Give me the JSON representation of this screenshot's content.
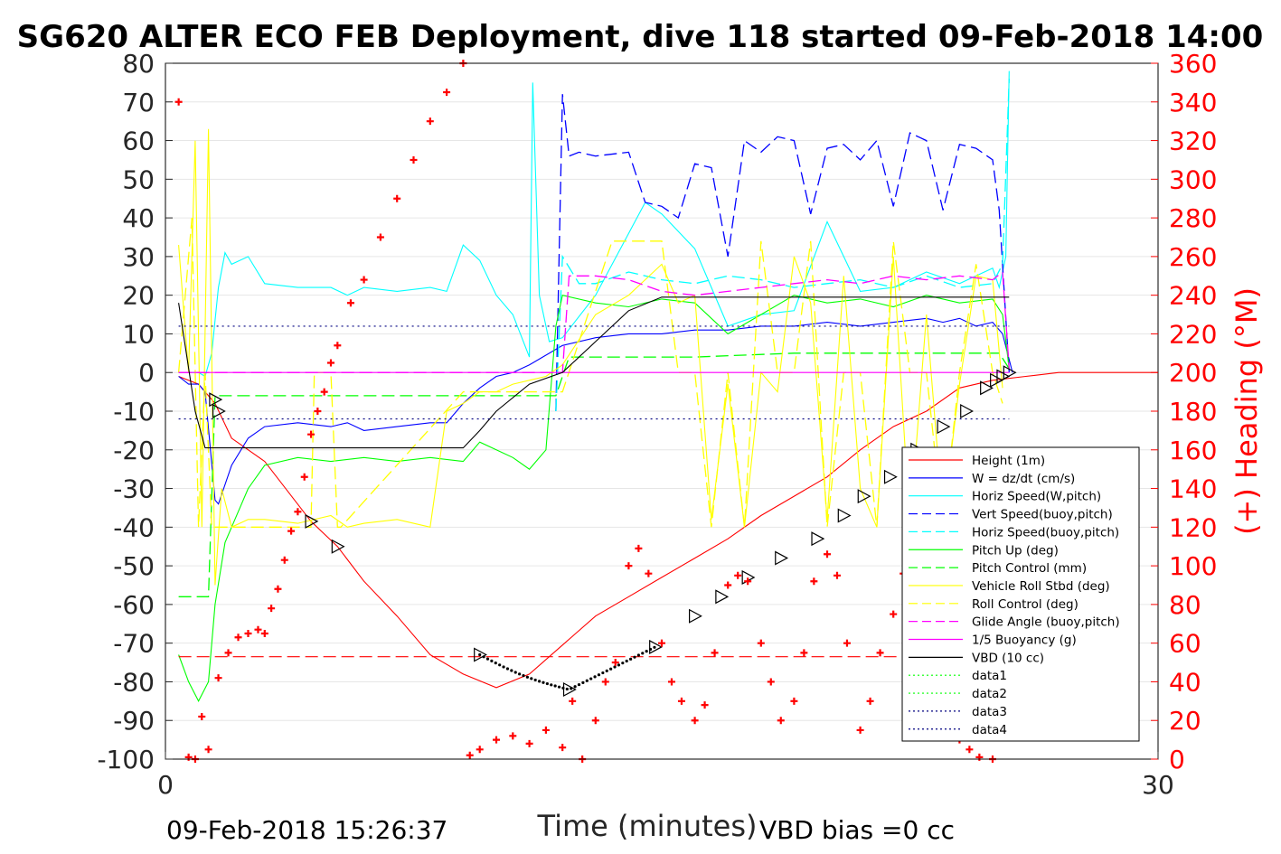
{
  "title": "SG620 ALTER ECO FEB Deployment, dive 118 started 09-Feb-2018 14:00",
  "footer": {
    "timestamp": "09-Feb-2018 15:26:37",
    "vbd_bias": "VBD bias =0 cc"
  },
  "chart_data": {
    "type": "line",
    "xlabel": "Time (minutes)",
    "ylabel_left": "",
    "ylabel_right": "(+) Heading (°M)",
    "xlim": [
      0,
      30
    ],
    "ylim_left": [
      -100,
      80
    ],
    "ylim_right": [
      0,
      360
    ],
    "xticks": [
      "0",
      "30"
    ],
    "yticks_left": [
      "80",
      "70",
      "60",
      "50",
      "40",
      "30",
      "20",
      "10",
      "0",
      "-10",
      "-20",
      "-30",
      "-40",
      "-50",
      "-60",
      "-70",
      "-80",
      "-90",
      "-100"
    ],
    "yticks_right": [
      "360",
      "340",
      "320",
      "300",
      "280",
      "260",
      "240",
      "220",
      "200",
      "180",
      "160",
      "140",
      "120",
      "100",
      "80",
      "60",
      "40",
      "20",
      "0"
    ],
    "grid": true,
    "legend_position": "lower-right",
    "colors": {
      "red": "#ff0000",
      "blue": "#0000ff",
      "cyan": "#00ffff",
      "green": "#00ff00",
      "yellow": "#ffff00",
      "magenta": "#ff00ff",
      "black": "#000000",
      "navy": "#000080"
    },
    "series": [
      {
        "name": "Height (1m)",
        "color": "#ff0000",
        "style": "solid",
        "x": [
          0.4,
          1,
          1.5,
          2,
          3,
          4.4,
          5.2,
          6,
          7,
          8,
          9,
          10,
          11,
          12,
          13,
          14,
          15,
          16,
          17,
          18,
          19,
          20,
          21,
          22,
          23,
          24,
          25,
          26,
          27,
          28,
          29,
          30
        ],
        "y": [
          -1,
          -3,
          -8,
          -17,
          -23,
          -38.5,
          -45,
          -54,
          -63,
          -73,
          -78,
          -81.5,
          -78,
          -70.5,
          -63,
          -58,
          -53,
          -48,
          -43,
          -37,
          -32,
          -27,
          -20,
          -14,
          -10,
          -4,
          -2,
          -1,
          0,
          0,
          0,
          0
        ]
      },
      {
        "name": "W = dz/dt (cm/s)",
        "color": "#0000ff",
        "style": "solid",
        "x": [
          0.4,
          0.7,
          1,
          1.2,
          1.5,
          1.6,
          2,
          2.5,
          3,
          4,
          5,
          5.5,
          6,
          7,
          8,
          8.5,
          9,
          9.5,
          10,
          10.5,
          11,
          12,
          13,
          14,
          15,
          16,
          17,
          18,
          19,
          20,
          21,
          22,
          23,
          23.5,
          24,
          24.5,
          25,
          25.3,
          25.6
        ],
        "y": [
          -1,
          -3,
          -3,
          -5,
          -33,
          -34,
          -24,
          -17,
          -14,
          -13,
          -14,
          -13,
          -15,
          -14,
          -13,
          -13,
          -8,
          -4,
          -1,
          0,
          2,
          7,
          9,
          10,
          10,
          11,
          11,
          12,
          12,
          13,
          12,
          13,
          14,
          13,
          14,
          12,
          13,
          10,
          0
        ]
      },
      {
        "name": "Horiz Speed(W,pitch)",
        "color": "#00ffff",
        "style": "solid",
        "x": [
          0.4,
          1,
          1.2,
          1.4,
          1.6,
          1.8,
          2,
          2.5,
          3,
          4,
          5,
          5.5,
          6,
          7,
          8,
          8.5,
          9,
          9.5,
          10,
          10.5,
          11,
          11.1,
          11.3,
          11.6,
          12,
          13,
          14,
          14.5,
          15,
          16,
          17,
          18,
          19,
          20,
          21,
          22,
          23,
          24,
          24.5,
          25,
          25.2,
          25.4,
          25.5
        ],
        "y": [
          0,
          0,
          -1,
          5,
          22,
          31,
          28,
          30,
          23,
          22,
          22,
          20,
          22,
          21,
          22,
          21,
          33,
          29,
          20,
          15,
          4,
          75,
          20,
          8,
          9,
          20,
          36,
          44,
          41,
          32,
          12,
          15,
          16,
          39,
          21,
          22,
          26,
          23,
          25,
          27,
          22,
          30,
          78
        ]
      },
      {
        "name": "Vert Speed(buoy,pitch)",
        "color": "#0000ff",
        "style": "dash",
        "x": [
          11.8,
          12,
          12.2,
          12.5,
          13,
          14,
          14.5,
          15,
          15.5,
          16,
          16.5,
          17,
          17.5,
          18,
          18.5,
          19,
          19.5,
          20,
          20.5,
          21,
          21.5,
          22,
          22.5,
          23,
          23.5,
          24,
          24.5,
          25,
          25.2,
          25.5
        ],
        "y": [
          -10,
          72,
          56,
          57,
          56,
          57,
          44,
          43,
          40,
          54,
          53,
          30,
          60,
          57,
          61,
          60,
          41,
          58,
          59,
          55,
          60,
          43,
          62,
          60,
          42,
          59,
          58,
          55,
          42,
          0
        ]
      },
      {
        "name": "Horiz Speed(buoy,pitch)",
        "color": "#00ffff",
        "style": "dash",
        "x": [
          11.8,
          12,
          12.5,
          13,
          14,
          15,
          16,
          17,
          18,
          19,
          20,
          21,
          22,
          23,
          24,
          25,
          25.3,
          25.5
        ],
        "y": [
          -10,
          30,
          23,
          23,
          26,
          24,
          23,
          25,
          24,
          22,
          23,
          24,
          22,
          25,
          22,
          23,
          28,
          76
        ]
      },
      {
        "name": "Pitch Up (deg)",
        "color": "#00ff00",
        "style": "solid",
        "x": [
          0.4,
          0.7,
          1,
          1.3,
          1.5,
          1.8,
          2,
          2.5,
          3,
          4,
          5,
          6,
          7,
          8,
          9,
          9.5,
          10,
          10.5,
          11,
          11.5,
          11.8,
          12,
          13,
          14,
          15,
          16,
          17,
          18,
          19,
          20,
          21,
          22,
          23,
          24,
          25,
          25.3,
          25.5
        ],
        "y": [
          -73,
          -80,
          -85,
          -80,
          -60,
          -44,
          -40,
          -30,
          -24,
          -22,
          -23,
          -22,
          -23,
          -22,
          -23,
          -18,
          -20,
          -22,
          -25,
          -20,
          12,
          20,
          18,
          17,
          19,
          18,
          10,
          15,
          20,
          18,
          19,
          17,
          20,
          18,
          19,
          15,
          1
        ]
      },
      {
        "name": "Pitch Control (mm)",
        "color": "#00ff00",
        "style": "dash",
        "x": [
          0.4,
          1.3,
          1.5,
          9,
          11.8,
          12.2,
          16,
          19,
          22,
          25.2,
          25.5
        ],
        "y": [
          -58,
          -58,
          -6,
          -6,
          -6,
          4,
          4,
          5,
          5,
          5,
          1
        ]
      },
      {
        "name": "Vehicle Roll Stbd (deg)",
        "color": "#ffff00",
        "style": "solid",
        "x": [
          0.4,
          0.7,
          0.9,
          1.1,
          1.3,
          1.5,
          1.7,
          2,
          2.5,
          3,
          4,
          5,
          5.5,
          6,
          7,
          8,
          8.5,
          9,
          9.5,
          10,
          10.5,
          11,
          11.5,
          12,
          13,
          14,
          15,
          15.5,
          16,
          16.5,
          17,
          17.5,
          18,
          18.5,
          19,
          19.5,
          20,
          20.5,
          21,
          21.5,
          22,
          22.5,
          23,
          23.5,
          24,
          24.5,
          25,
          25.3
        ],
        "y": [
          33,
          0,
          60,
          -40,
          63,
          -55,
          -30,
          -40,
          -38,
          -38,
          -39,
          -37,
          -40,
          -39,
          -38,
          -40,
          -10,
          -8,
          -5,
          -5,
          -3,
          -2,
          -1,
          2,
          15,
          20,
          28,
          18,
          20,
          -38,
          -3,
          -40,
          0,
          -5,
          30,
          18,
          -38,
          25,
          -30,
          -40,
          30,
          -40,
          15,
          -38,
          -3,
          25,
          24,
          -4
        ]
      },
      {
        "name": "Roll Control (deg)",
        "color": "#ffff00",
        "style": "dash",
        "x": [
          0.4,
          0.8,
          1,
          1.2,
          1.4,
          2,
          4.4,
          4.5,
          5,
          5.2,
          5.3,
          9,
          12,
          13.5,
          15,
          15.5,
          16,
          16.5,
          17,
          17.5,
          18,
          18.5,
          19,
          19.5,
          20,
          20.5,
          21,
          21.5,
          22,
          22.5,
          23,
          23.5,
          24,
          24.5,
          25,
          25.3
        ],
        "y": [
          0,
          40,
          -40,
          0,
          -40,
          -40,
          -40,
          0,
          0,
          -40,
          -40,
          -5,
          -5,
          34,
          34,
          0,
          0,
          -40,
          0,
          -40,
          34,
          0,
          0,
          34,
          -40,
          0,
          0,
          -40,
          34,
          0,
          0,
          -40,
          0,
          28,
          0,
          -8
        ]
      },
      {
        "name": "Glide Angle (buoy,pitch)",
        "color": "#ff00ff",
        "style": "dash",
        "x": [
          0.4,
          12,
          12.2,
          13,
          14,
          15,
          16,
          17,
          18,
          19,
          20,
          21,
          22,
          23,
          24,
          25,
          25.3,
          25.5
        ],
        "y": [
          0,
          0,
          25,
          25,
          24,
          21,
          20,
          21,
          22,
          23,
          24,
          23,
          25,
          24,
          25,
          24,
          26,
          1
        ]
      },
      {
        "name": "1/5 Buoyancy (g)",
        "color": "#ff00ff",
        "style": "solid",
        "x": [
          0.4,
          25.5
        ],
        "y": [
          0,
          0
        ]
      },
      {
        "name": "VBD (10 cc)",
        "color": "#000000",
        "style": "solid",
        "x": [
          0.4,
          0.9,
          1.2,
          3,
          5,
          7,
          9,
          9.5,
          10,
          11,
          12,
          13,
          14,
          15,
          16,
          17,
          18,
          19,
          20,
          21,
          22,
          23,
          24,
          25,
          25.5
        ],
        "y": [
          18,
          -10,
          -19.5,
          -19.5,
          -19.5,
          -19.5,
          -19.5,
          -15,
          -10,
          -3,
          0,
          8,
          16,
          19.5,
          19.5,
          19.5,
          19.5,
          19.5,
          19.5,
          19.5,
          19.5,
          19.5,
          19.5,
          19.5,
          19.5
        ]
      },
      {
        "name": "data1",
        "color": "#00ff00",
        "style": "dot",
        "x": [],
        "y": []
      },
      {
        "name": "data2",
        "color": "#00ff00",
        "style": "dot",
        "x": [],
        "y": []
      },
      {
        "name": "data3",
        "color": "#000080",
        "style": "dot",
        "x": [
          0.4,
          25.5
        ],
        "y": [
          12,
          12
        ]
      },
      {
        "name": "data4",
        "color": "#000080",
        "style": "dot",
        "x": [
          0.4,
          25.5
        ],
        "y": [
          -12,
          -12
        ]
      }
    ],
    "apogee_line": {
      "color": "#ff0000",
      "style": "dash",
      "x": [
        0.4,
        25.5
      ],
      "y": [
        -73.5,
        -73.5
      ]
    },
    "markers": {
      "symbol": "triangle",
      "color": "#000000",
      "x": [
        1.5,
        1.6,
        4.4,
        5.2,
        9.5,
        12.2,
        14.8,
        16.0,
        16.8,
        17.6,
        18.6,
        19.7,
        20.5,
        21.1,
        21.9,
        22.7,
        23.5,
        24.2,
        24.8,
        25.1,
        25.3,
        25.5
      ],
      "y": [
        -7,
        -10,
        -38.5,
        -45,
        -73,
        -82,
        -71,
        -63,
        -58,
        -53,
        -48,
        -43,
        -37,
        -32,
        -27,
        -20,
        -14,
        -10,
        -4,
        -2,
        -1,
        0
      ]
    },
    "heading": {
      "axis": "right",
      "color": "#ff0000",
      "symbol": "+",
      "x": [
        0.4,
        0.7,
        0.9,
        1.1,
        1.3,
        1.6,
        1.9,
        2.2,
        2.5,
        2.8,
        3.0,
        3.2,
        3.4,
        3.6,
        3.8,
        4.0,
        4.2,
        4.4,
        4.6,
        4.8,
        5.0,
        5.2,
        5.6,
        6,
        6.5,
        7,
        7.5,
        8,
        8.5,
        9,
        9.2,
        9.5,
        10,
        10.5,
        11,
        11.5,
        12,
        12.3,
        12.6,
        13,
        13.3,
        13.6,
        14,
        14.3,
        14.6,
        15,
        15.3,
        15.6,
        16,
        16.3,
        16.6,
        17,
        17.3,
        17.6,
        18,
        18.3,
        18.6,
        19,
        19.3,
        19.6,
        20,
        20.3,
        20.6,
        21,
        21.3,
        21.6,
        22,
        22.3,
        22.6,
        23,
        23.3,
        23.6,
        24,
        24.3,
        24.6,
        25
      ],
      "y": [
        340,
        1,
        -1,
        22,
        5,
        42,
        55,
        63,
        65,
        67,
        65,
        78,
        88,
        103,
        118,
        128,
        146,
        168,
        180,
        190,
        205,
        214,
        236,
        248,
        270,
        290,
        310,
        330,
        345,
        360,
        2,
        5,
        10,
        12,
        8,
        15,
        6,
        30,
        -1,
        20,
        40,
        50,
        100,
        109,
        96,
        60,
        40,
        30,
        20,
        28,
        55,
        90,
        95,
        92,
        60,
        40,
        20,
        30,
        55,
        92,
        106,
        95,
        60,
        15,
        30,
        55,
        75,
        96,
        90,
        80,
        40,
        20,
        10,
        5,
        1,
        0
      ]
    }
  }
}
